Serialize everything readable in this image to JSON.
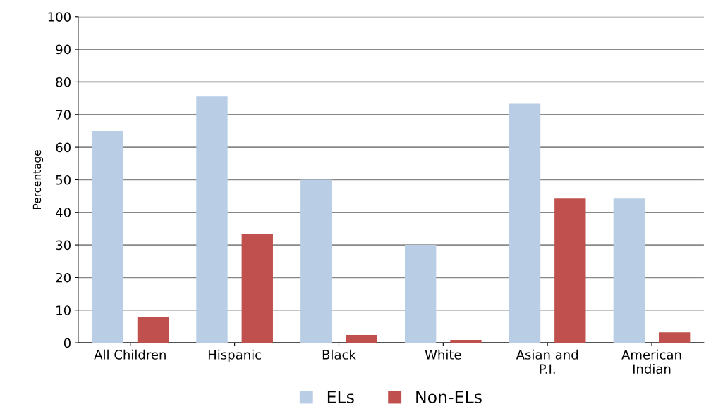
{
  "chart_data": {
    "type": "bar",
    "ylabel": "Percentage",
    "categories": [
      "All Children",
      "Hispanic",
      "Black",
      "White",
      "Asian and\nP.I.",
      "American\nIndian"
    ],
    "series": [
      {
        "name": "ELs",
        "color": "#b9cde5",
        "values": [
          65,
          75.5,
          50,
          30,
          73.3,
          44.2
        ]
      },
      {
        "name": "Non-ELs",
        "color": "#c0504d",
        "values": [
          8,
          33.4,
          2.4,
          0.9,
          44.2,
          3.2
        ]
      }
    ],
    "ylim": [
      0,
      100
    ],
    "yticks": [
      0,
      10,
      20,
      30,
      40,
      50,
      60,
      70,
      80,
      90,
      100
    ],
    "grid": "y",
    "legend": "bottom"
  }
}
